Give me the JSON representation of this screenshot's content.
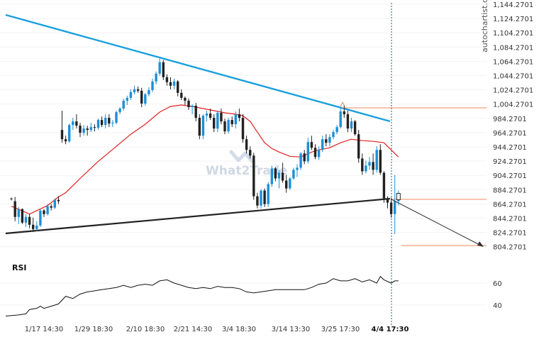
{
  "chart_data": {
    "type": "candlestick",
    "watermark": "What2Trade",
    "credit": "autochartist.com",
    "price_axis": {
      "ticks": [
        "1,144.2701",
        "1,124.2701",
        "1,104.2701",
        "1,084.2701",
        "1,064.2701",
        "1,044.2701",
        "1,024.2701",
        "1,004.2701",
        "984.2701",
        "964.2701",
        "944.2701",
        "924.2701",
        "904.2701",
        "884.2701",
        "864.2701",
        "844.2701",
        "824.2701",
        "804.2701"
      ],
      "tick_values": [
        1144.2701,
        1124.2701,
        1104.2701,
        1084.2701,
        1064.2701,
        1044.2701,
        1024.2701,
        1004.2701,
        984.2701,
        964.2701,
        944.2701,
        924.2701,
        904.2701,
        884.2701,
        864.2701,
        844.2701,
        824.2701,
        804.2701
      ]
    },
    "time_axis": {
      "labels": [
        "1/17 14:30",
        "1/29 18:30",
        "2/10 18:30",
        "2/21 14:30",
        "3/4 18:30",
        "3/14 13:30",
        "3/25 17:30",
        "4/4 17:30"
      ],
      "highlight": "4/4 17:30"
    },
    "candles": [
      [
        1,
        872,
        873,
        869,
        871
      ],
      [
        2,
        868,
        874,
        840,
        846
      ],
      [
        3,
        846,
        860,
        836,
        857
      ],
      [
        4,
        857,
        858,
        836,
        838
      ],
      [
        5,
        838,
        850,
        832,
        846
      ],
      [
        6,
        846,
        850,
        830,
        835
      ],
      [
        7,
        835,
        845,
        825,
        829
      ],
      [
        8,
        829,
        840,
        826,
        834
      ],
      [
        9,
        834,
        857,
        832,
        855
      ],
      [
        10,
        855,
        857,
        846,
        850
      ],
      [
        11,
        850,
        864,
        848,
        861
      ],
      [
        12,
        861,
        864,
        855,
        859
      ],
      [
        13,
        859,
        872,
        857,
        870
      ],
      [
        14,
        870,
        875,
        864,
        868
      ],
      [
        15,
        968,
        995,
        950,
        955
      ],
      [
        16,
        955,
        960,
        948,
        952
      ],
      [
        17,
        952,
        977,
        950,
        975
      ],
      [
        18,
        975,
        985,
        968,
        980
      ],
      [
        19,
        980,
        990,
        970,
        974
      ],
      [
        20,
        974,
        978,
        958,
        964
      ],
      [
        21,
        964,
        975,
        960,
        970
      ],
      [
        22,
        970,
        974,
        960,
        968
      ],
      [
        23,
        968,
        978,
        965,
        972
      ],
      [
        24,
        972,
        976,
        966,
        971
      ],
      [
        25,
        971,
        984,
        968,
        982
      ],
      [
        26,
        982,
        987,
        972,
        975
      ],
      [
        27,
        975,
        990,
        970,
        985
      ],
      [
        28,
        985,
        990,
        972,
        977
      ],
      [
        29,
        977,
        982,
        972,
        978
      ],
      [
        30,
        978,
        995,
        976,
        993
      ],
      [
        31,
        993,
        1000,
        990,
        998
      ],
      [
        32,
        998,
        1012,
        995,
        1009
      ],
      [
        33,
        1009,
        1016,
        1003,
        1013
      ],
      [
        34,
        1013,
        1025,
        1010,
        1021
      ],
      [
        35,
        1021,
        1030,
        1018,
        1025
      ],
      [
        36,
        1025,
        1029,
        1020,
        1023
      ],
      [
        37,
        1023,
        1027,
        1000,
        1005
      ],
      [
        38,
        1005,
        1020,
        1002,
        1018
      ],
      [
        39,
        1018,
        1028,
        1015,
        1024
      ],
      [
        40,
        1024,
        1040,
        1021,
        1036
      ],
      [
        41,
        1036,
        1050,
        1032,
        1047
      ],
      [
        42,
        1047,
        1068,
        1044,
        1063
      ],
      [
        43,
        1063,
        1066,
        1038,
        1042
      ],
      [
        44,
        1042,
        1046,
        1030,
        1035
      ],
      [
        45,
        1035,
        1042,
        1025,
        1030
      ],
      [
        46,
        1030,
        1040,
        1025,
        1036
      ],
      [
        47,
        1036,
        1038,
        1015,
        1020
      ],
      [
        48,
        1020,
        1025,
        1010,
        1013
      ],
      [
        49,
        1013,
        1015,
        1003,
        1009
      ],
      [
        50,
        1009,
        1012,
        996,
        1000
      ],
      [
        51,
        1000,
        1004,
        990,
        1002
      ],
      [
        52,
        1002,
        1006,
        980,
        985
      ],
      [
        53,
        985,
        990,
        955,
        960
      ],
      [
        54,
        960,
        990,
        955,
        988
      ],
      [
        55,
        988,
        995,
        980,
        991
      ],
      [
        56,
        991,
        998,
        982,
        985
      ],
      [
        57,
        985,
        990,
        965,
        970
      ],
      [
        58,
        970,
        995,
        965,
        992
      ],
      [
        59,
        992,
        998,
        976,
        980
      ],
      [
        60,
        980,
        984,
        962,
        966
      ],
      [
        61,
        966,
        985,
        963,
        982
      ],
      [
        62,
        982,
        987,
        972,
        976
      ],
      [
        63,
        976,
        994,
        970,
        990
      ],
      [
        64,
        990,
        998,
        980,
        985
      ],
      [
        65,
        985,
        990,
        950,
        955
      ],
      [
        66,
        955,
        960,
        935,
        940
      ],
      [
        67,
        940,
        945,
        928,
        932
      ],
      [
        68,
        932,
        936,
        870,
        875
      ],
      [
        69,
        875,
        880,
        858,
        862
      ],
      [
        70,
        862,
        885,
        858,
        883
      ],
      [
        71,
        883,
        886,
        860,
        864
      ],
      [
        72,
        864,
        895,
        860,
        892
      ],
      [
        73,
        892,
        918,
        888,
        914
      ],
      [
        74,
        914,
        916,
        896,
        900
      ],
      [
        75,
        900,
        912,
        886,
        908
      ],
      [
        76,
        908,
        922,
        894,
        897
      ],
      [
        77,
        897,
        905,
        880,
        886
      ],
      [
        78,
        886,
        902,
        884,
        900
      ],
      [
        79,
        900,
        915,
        898,
        912
      ],
      [
        80,
        912,
        920,
        902,
        915
      ],
      [
        81,
        915,
        937,
        912,
        935
      ],
      [
        82,
        935,
        940,
        920,
        924
      ],
      [
        83,
        924,
        957,
        921,
        951
      ],
      [
        84,
        951,
        960,
        940,
        943
      ],
      [
        85,
        943,
        948,
        927,
        930
      ],
      [
        86,
        930,
        945,
        926,
        940
      ],
      [
        87,
        940,
        960,
        937,
        955
      ],
      [
        88,
        955,
        962,
        945,
        950
      ],
      [
        89,
        950,
        962,
        945,
        958
      ],
      [
        90,
        958,
        968,
        955,
        965
      ],
      [
        91,
        965,
        975,
        962,
        972
      ],
      [
        92,
        972,
        998,
        970,
        994
      ],
      [
        93,
        994,
        1002,
        985,
        990
      ],
      [
        94,
        990,
        995,
        965,
        970
      ],
      [
        95,
        970,
        985,
        965,
        980
      ],
      [
        96,
        980,
        982,
        960,
        962
      ],
      [
        97,
        962,
        968,
        922,
        928
      ],
      [
        98,
        928,
        935,
        905,
        910
      ],
      [
        99,
        910,
        925,
        907,
        918
      ],
      [
        100,
        918,
        930,
        912,
        923
      ],
      [
        101,
        923,
        935,
        905,
        912
      ],
      [
        102,
        912,
        945,
        908,
        940
      ],
      [
        103,
        940,
        948,
        905,
        908
      ],
      [
        104,
        908,
        910,
        866,
        872
      ],
      [
        105,
        872,
        875,
        858,
        866
      ],
      [
        106,
        866,
        873,
        845,
        850
      ],
      [
        107,
        850,
        905,
        822,
        868
      ],
      [
        108,
        868,
        883,
        862,
        872
      ]
    ],
    "moving_average": [
      [
        1,
        861
      ],
      [
        6,
        850
      ],
      [
        11,
        862
      ],
      [
        14,
        874
      ],
      [
        16,
        880
      ],
      [
        20,
        900
      ],
      [
        25,
        924
      ],
      [
        30,
        945
      ],
      [
        34,
        962
      ],
      [
        38,
        976
      ],
      [
        42,
        993
      ],
      [
        45,
        1001
      ],
      [
        48,
        1003
      ],
      [
        51,
        1001
      ],
      [
        54,
        998
      ],
      [
        57,
        995
      ],
      [
        60,
        992
      ],
      [
        63,
        990
      ],
      [
        65,
        988
      ],
      [
        67,
        980
      ],
      [
        69,
        965
      ],
      [
        71,
        950
      ],
      [
        73,
        942
      ],
      [
        75,
        937
      ],
      [
        78,
        931
      ],
      [
        81,
        930
      ],
      [
        84,
        937
      ],
      [
        86,
        940
      ],
      [
        89,
        943
      ],
      [
        92,
        950
      ],
      [
        95,
        955
      ],
      [
        98,
        953
      ],
      [
        101,
        952
      ],
      [
        104,
        950
      ],
      [
        106,
        940
      ],
      [
        108,
        930
      ]
    ],
    "rsi": {
      "title": "RSI",
      "ticks": [
        "60",
        "40"
      ],
      "tick_values": [
        60,
        40
      ],
      "values": [
        [
          0,
          30
        ],
        [
          3,
          31
        ],
        [
          5,
          32
        ],
        [
          6,
          36
        ],
        [
          8,
          37
        ],
        [
          9,
          39
        ],
        [
          10,
          37
        ],
        [
          12,
          39
        ],
        [
          14,
          41
        ],
        [
          16,
          48
        ],
        [
          18,
          46
        ],
        [
          20,
          50
        ],
        [
          22,
          52
        ],
        [
          24,
          53
        ],
        [
          26,
          54
        ],
        [
          28,
          55
        ],
        [
          30,
          56
        ],
        [
          32,
          58
        ],
        [
          34,
          56
        ],
        [
          36,
          58
        ],
        [
          38,
          59
        ],
        [
          40,
          58
        ],
        [
          42,
          62
        ],
        [
          44,
          63
        ],
        [
          46,
          60
        ],
        [
          48,
          58
        ],
        [
          50,
          56
        ],
        [
          52,
          55
        ],
        [
          54,
          56
        ],
        [
          56,
          55
        ],
        [
          58,
          57
        ],
        [
          60,
          56
        ],
        [
          62,
          56
        ],
        [
          64,
          55
        ],
        [
          66,
          52
        ],
        [
          68,
          51
        ],
        [
          70,
          52
        ],
        [
          72,
          53
        ],
        [
          74,
          54
        ],
        [
          76,
          54
        ],
        [
          78,
          54
        ],
        [
          80,
          54
        ],
        [
          82,
          54
        ],
        [
          84,
          56
        ],
        [
          86,
          59
        ],
        [
          88,
          60
        ],
        [
          90,
          64
        ],
        [
          92,
          62
        ],
        [
          94,
          62
        ],
        [
          96,
          64
        ],
        [
          98,
          61
        ],
        [
          100,
          63
        ],
        [
          102,
          60
        ],
        [
          103,
          66
        ],
        [
          104,
          63
        ],
        [
          106,
          60
        ],
        [
          107,
          62
        ],
        [
          108,
          62
        ]
      ]
    }
  }
}
